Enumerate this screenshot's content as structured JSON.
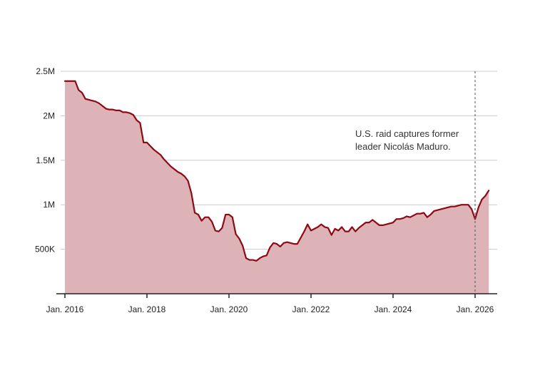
{
  "colors": {
    "line": "#8b0a14",
    "fill": "#ddb3b8",
    "grid": "#cccccc",
    "axis": "#222222",
    "event_line": "#555555",
    "text": "#222222"
  },
  "chart_data": {
    "type": "area",
    "title": "",
    "xlabel": "",
    "ylabel": "",
    "x_tick_labels": [
      "Jan. 2016",
      "Jan. 2018",
      "Jan. 2020",
      "Jan. 2022",
      "Jan. 2024",
      "Jan. 2026"
    ],
    "y_tick_labels": [
      "500K",
      "1M",
      "1.5M",
      "2M",
      "2.5M"
    ],
    "y_tick_values": [
      500000,
      1000000,
      1500000,
      2000000,
      2500000
    ],
    "xlim": [
      "2016-01",
      "2026-05"
    ],
    "ylim": [
      0,
      2500000
    ],
    "grid": "horizontal",
    "annotation": {
      "date": "2026-01",
      "lines": [
        "U.S. raid captures former",
        "leader Nicolás Maduro."
      ]
    },
    "series": [
      {
        "x": [
          "2016-01",
          "2016-02",
          "2016-03",
          "2016-04",
          "2016-05",
          "2016-06",
          "2016-07",
          "2016-08",
          "2016-09",
          "2016-10",
          "2016-11",
          "2016-12",
          "2017-01",
          "2017-02",
          "2017-03",
          "2017-04",
          "2017-05",
          "2017-06",
          "2017-07",
          "2017-08",
          "2017-09",
          "2017-10",
          "2017-11",
          "2017-12",
          "2018-01",
          "2018-02",
          "2018-03",
          "2018-04",
          "2018-05",
          "2018-06",
          "2018-07",
          "2018-08",
          "2018-09",
          "2018-10",
          "2018-11",
          "2018-12",
          "2019-01",
          "2019-02",
          "2019-03",
          "2019-04",
          "2019-05",
          "2019-06",
          "2019-07",
          "2019-08",
          "2019-09",
          "2019-10",
          "2019-11",
          "2019-12",
          "2020-01",
          "2020-02",
          "2020-03",
          "2020-04",
          "2020-05",
          "2020-06",
          "2020-07",
          "2020-08",
          "2020-09",
          "2020-10",
          "2020-11",
          "2020-12",
          "2021-01",
          "2021-02",
          "2021-03",
          "2021-04",
          "2021-05",
          "2021-06",
          "2021-07",
          "2021-08",
          "2021-09",
          "2021-10",
          "2021-11",
          "2021-12",
          "2022-01",
          "2022-02",
          "2022-03",
          "2022-04",
          "2022-05",
          "2022-06",
          "2022-07",
          "2022-08",
          "2022-09",
          "2022-10",
          "2022-11",
          "2022-12",
          "2023-01",
          "2023-02",
          "2023-03",
          "2023-04",
          "2023-05",
          "2023-06",
          "2023-07",
          "2023-08",
          "2023-09",
          "2023-10",
          "2023-11",
          "2023-12",
          "2024-01",
          "2024-02",
          "2024-03",
          "2024-04",
          "2024-05",
          "2024-06",
          "2024-07",
          "2024-08",
          "2024-09",
          "2024-10",
          "2024-11",
          "2024-12",
          "2025-01",
          "2025-02",
          "2025-03",
          "2025-04",
          "2025-05",
          "2025-06",
          "2025-07",
          "2025-08",
          "2025-09",
          "2025-10",
          "2025-11",
          "2025-12",
          "2026-01",
          "2026-02",
          "2026-03",
          "2026-04",
          "2026-05"
        ],
        "values": [
          2390000,
          2390000,
          2390000,
          2390000,
          2290000,
          2260000,
          2190000,
          2180000,
          2170000,
          2160000,
          2140000,
          2110000,
          2080000,
          2070000,
          2070000,
          2060000,
          2060000,
          2040000,
          2040000,
          2030000,
          2010000,
          1950000,
          1920000,
          1700000,
          1700000,
          1660000,
          1620000,
          1590000,
          1560000,
          1510000,
          1470000,
          1430000,
          1400000,
          1370000,
          1350000,
          1320000,
          1270000,
          1130000,
          910000,
          890000,
          820000,
          860000,
          860000,
          810000,
          710000,
          700000,
          740000,
          890000,
          890000,
          860000,
          670000,
          620000,
          540000,
          400000,
          380000,
          380000,
          370000,
          400000,
          420000,
          430000,
          520000,
          570000,
          560000,
          530000,
          570000,
          580000,
          570000,
          560000,
          560000,
          630000,
          700000,
          780000,
          710000,
          730000,
          750000,
          780000,
          750000,
          740000,
          660000,
          730000,
          710000,
          750000,
          700000,
          700000,
          750000,
          700000,
          740000,
          770000,
          800000,
          800000,
          830000,
          800000,
          770000,
          770000,
          780000,
          790000,
          800000,
          840000,
          840000,
          850000,
          870000,
          860000,
          880000,
          900000,
          900000,
          910000,
          860000,
          890000,
          930000,
          940000,
          950000,
          960000,
          970000,
          980000,
          980000,
          990000,
          1000000,
          1000000,
          1000000,
          950000,
          840000,
          970000,
          1060000,
          1100000,
          1160000
        ]
      }
    ]
  }
}
